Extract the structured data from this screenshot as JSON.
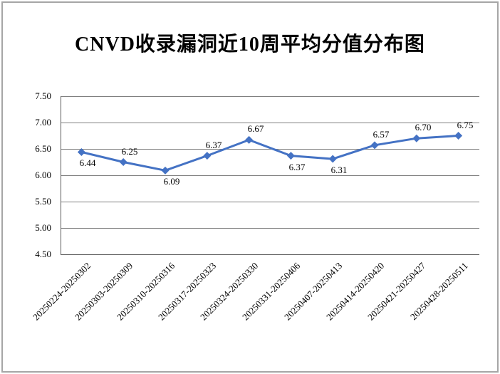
{
  "chart_data": {
    "type": "line",
    "title": "CNVD收录漏洞近10周平均分值分布图",
    "categories": [
      "20250224-20250302",
      "20250303-20250309",
      "20250310-20250316",
      "20250317-20250323",
      "20250324-20250330",
      "20250331-20250406",
      "20250407-20250413",
      "20250414-20250420",
      "20250421-20250427",
      "20250428-20250511"
    ],
    "values": [
      6.44,
      6.25,
      6.09,
      6.37,
      6.67,
      6.37,
      6.31,
      6.57,
      6.7,
      6.75
    ],
    "data_labels": [
      "6.44",
      "6.25",
      "6.09",
      "6.37",
      "6.67",
      "6.37",
      "6.31",
      "6.57",
      "6.70",
      "6.75"
    ],
    "label_positions": [
      "below",
      "above",
      "below",
      "above",
      "above",
      "below",
      "below",
      "above",
      "above",
      "above"
    ],
    "xlabel": "",
    "ylabel": "",
    "ylim": [
      4.5,
      7.5
    ],
    "ytick_step": 0.5,
    "ytick_labels": [
      "7.50",
      "7.00",
      "6.50",
      "6.00",
      "5.50",
      "5.00",
      "4.50"
    ],
    "grid": true,
    "legend_position": "none",
    "line_color": "#4472c4",
    "marker": "diamond",
    "gridline_color": "#808080",
    "axis_color": "#595959",
    "border_color": "#a6a6a6",
    "background_color": "#ffffff"
  }
}
